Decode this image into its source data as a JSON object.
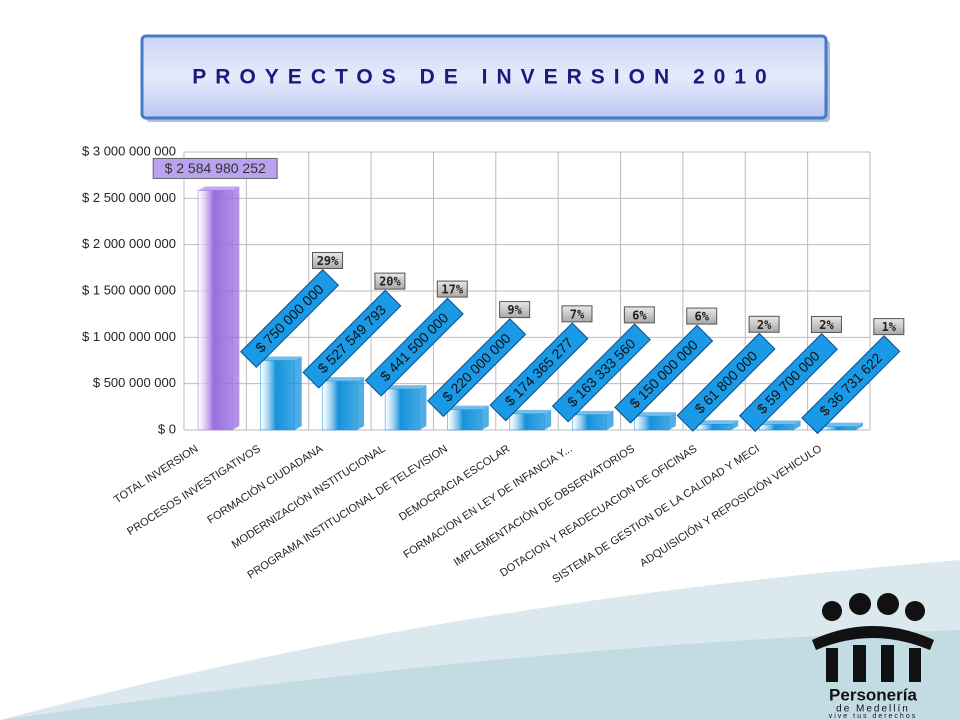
{
  "chart_data": {
    "type": "bar",
    "title": "PROYECTOS DE INVERSION 2010",
    "categories": [
      "TOTAL INVERSION",
      "PROCESOS INVESTIGATIVOS",
      "FORMACIÓN CIUDADANA",
      "MODERNIZACIÓN INSTITUCIONAL",
      "PROGRAMA INSTITUCIONAL DE TELEVISION",
      "DEMOCRACIA ESCOLAR",
      "FORMACION EN LEY DE INFANCIA Y...",
      "IMPLEMENTACIÓN DE OBSERVATORIOS",
      "DOTACION Y READECUACION DE OFICINAS",
      "SISTEMA DE GESTION DE LA CALIDAD Y MECI",
      "ADQUISICIÓN Y REPOSICIÓN VEHICULO"
    ],
    "values": [
      2584980252,
      750000000,
      527549793,
      441500000,
      220000000,
      174365277,
      163333560,
      150000000,
      61800000,
      59700000,
      36731622
    ],
    "value_labels": [
      "$ 2 584 980 252",
      "$ 750 000 000",
      "$ 527 549 793",
      "$ 441 500 000",
      "$ 220 000 000",
      "$ 174 365 277",
      "$ 163 333 560",
      "$ 150 000 000",
      "$ 61 800 000",
      "$ 59 700 000",
      "$ 36 731 622"
    ],
    "share_values": [
      null,
      29,
      20,
      17,
      9,
      7,
      6,
      6,
      2,
      2,
      1
    ],
    "share_labels": [
      null,
      "29%",
      "20%",
      "17%",
      "9%",
      "7%",
      "6%",
      "6%",
      "2%",
      "2%",
      "1%"
    ],
    "colors": [
      "#9a6ee0",
      "#1592dc",
      "#1592dc",
      "#1592dc",
      "#1592dc",
      "#1592dc",
      "#1592dc",
      "#1592dc",
      "#1592dc",
      "#1592dc",
      "#1592dc"
    ],
    "ylim": [
      0,
      3000000000
    ],
    "yticks": [
      {
        "value": 0,
        "label": "$ 0"
      },
      {
        "value": 500000000,
        "label": "$ 500 000 000"
      },
      {
        "value": 1000000000,
        "label": "$ 1 000 000 000"
      },
      {
        "value": 1500000000,
        "label": "$ 1 500 000 000"
      },
      {
        "value": 2000000000,
        "label": "$ 2 000 000 000"
      },
      {
        "value": 2500000000,
        "label": "$ 2 500 000 000"
      },
      {
        "value": 3000000000,
        "label": "$ 3 000 000 000"
      }
    ],
    "grid": true
  },
  "logo": {
    "name": "Personería",
    "city": "de Medellín",
    "slogan": "vive tus derechos"
  }
}
